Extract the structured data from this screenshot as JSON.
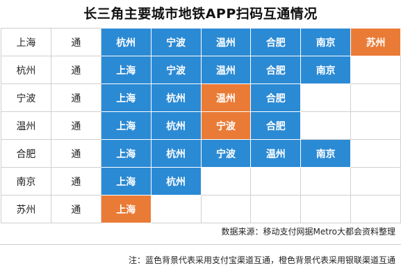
{
  "title": "长三角主要城市地铁APP扫码互通情况",
  "colors": {
    "blue": "#2b8ad4",
    "orange": "#ea7b36"
  },
  "rows": [
    {
      "city": "上海",
      "status": "通",
      "cells": [
        {
          "text": "杭州",
          "color": "blue"
        },
        {
          "text": "宁波",
          "color": "blue"
        },
        {
          "text": "温州",
          "color": "blue"
        },
        {
          "text": "合肥",
          "color": "blue"
        },
        {
          "text": "南京",
          "color": "blue"
        },
        {
          "text": "苏州",
          "color": "orange"
        }
      ]
    },
    {
      "city": "杭州",
      "status": "通",
      "cells": [
        {
          "text": "上海",
          "color": "blue"
        },
        {
          "text": "宁波",
          "color": "blue"
        },
        {
          "text": "温州",
          "color": "blue"
        },
        {
          "text": "合肥",
          "color": "blue"
        },
        {
          "text": "南京",
          "color": "blue"
        },
        {
          "text": "",
          "color": "empty"
        }
      ]
    },
    {
      "city": "宁波",
      "status": "通",
      "cells": [
        {
          "text": "上海",
          "color": "blue"
        },
        {
          "text": "杭州",
          "color": "blue"
        },
        {
          "text": "温州",
          "color": "orange"
        },
        {
          "text": "合肥",
          "color": "blue"
        },
        {
          "text": "",
          "color": "empty"
        },
        {
          "text": "",
          "color": "empty"
        }
      ]
    },
    {
      "city": "温州",
      "status": "通",
      "cells": [
        {
          "text": "上海",
          "color": "blue"
        },
        {
          "text": "杭州",
          "color": "blue"
        },
        {
          "text": "宁波",
          "color": "orange"
        },
        {
          "text": "合肥",
          "color": "blue"
        },
        {
          "text": "",
          "color": "empty"
        },
        {
          "text": "",
          "color": "empty"
        }
      ]
    },
    {
      "city": "合肥",
      "status": "通",
      "cells": [
        {
          "text": "上海",
          "color": "blue"
        },
        {
          "text": "杭州",
          "color": "blue"
        },
        {
          "text": "宁波",
          "color": "blue"
        },
        {
          "text": "温州",
          "color": "blue"
        },
        {
          "text": "南京",
          "color": "blue"
        },
        {
          "text": "",
          "color": "empty"
        }
      ]
    },
    {
      "city": "南京",
      "status": "通",
      "cells": [
        {
          "text": "上海",
          "color": "blue"
        },
        {
          "text": "杭州",
          "color": "blue"
        },
        {
          "text": "",
          "color": "empty"
        },
        {
          "text": "",
          "color": "empty"
        },
        {
          "text": "",
          "color": "empty"
        },
        {
          "text": "",
          "color": "empty"
        }
      ]
    },
    {
      "city": "苏州",
      "status": "通",
      "cells": [
        {
          "text": "上海",
          "color": "orange"
        },
        {
          "text": "",
          "color": "empty"
        },
        {
          "text": "",
          "color": "empty"
        },
        {
          "text": "",
          "color": "empty"
        },
        {
          "text": "",
          "color": "empty"
        },
        {
          "text": "",
          "color": "empty"
        }
      ]
    }
  ],
  "source": "数据来源：移动支付网据Metro大都会资料整理",
  "note": "注：蓝色背景代表采用支付宝渠道互通，橙色背景代表采用银联渠道互通"
}
